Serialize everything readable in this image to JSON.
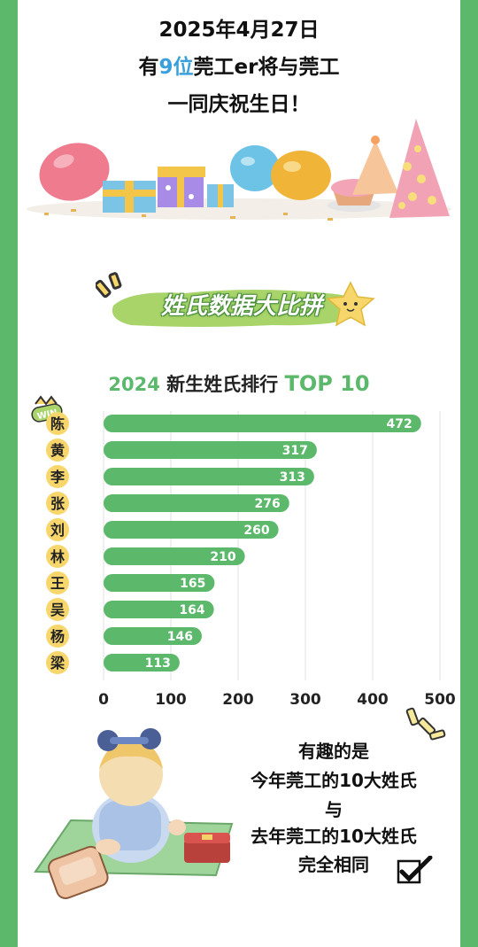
{
  "header": {
    "line1": "2025年4月27日",
    "line2_pre": "有",
    "line2_count": "9位",
    "line2_post": "莞工er将与莞工",
    "line3": "一同庆祝生日！"
  },
  "badge": {
    "title": "姓氏数据大比拼"
  },
  "chart_title": {
    "year": "2024",
    "text": " 新生姓氏排行 ",
    "top": "TOP 10"
  },
  "win_icon_text": "WIN",
  "chart_data": {
    "type": "bar",
    "orientation": "horizontal",
    "categories": [
      "陈",
      "黄",
      "李",
      "张",
      "刘",
      "林",
      "王",
      "吴",
      "杨",
      "梁"
    ],
    "values": [
      472,
      317,
      313,
      276,
      260,
      210,
      165,
      164,
      146,
      113
    ],
    "xlim": [
      0,
      500
    ],
    "xticks": [
      0,
      100,
      200,
      300,
      400,
      500
    ],
    "grid": true,
    "data_labels": true
  },
  "note": {
    "line1": "有趣的是",
    "line2": "今年莞工的10大姓氏",
    "line3": "与",
    "line4": "去年莞工的10大姓氏",
    "line5": "完全相同"
  },
  "colors": {
    "border": "#5cb86a",
    "bar": "#5cb86a",
    "label_circle": "#f7d76b",
    "accent_blue": "#3aa0dc"
  },
  "icons": [
    "balloon-icon",
    "gift-icon",
    "party-hat-icon",
    "cupcake-icon",
    "star-icon",
    "win-icon",
    "check-icon",
    "sparkle-icon",
    "kid-illustration"
  ]
}
